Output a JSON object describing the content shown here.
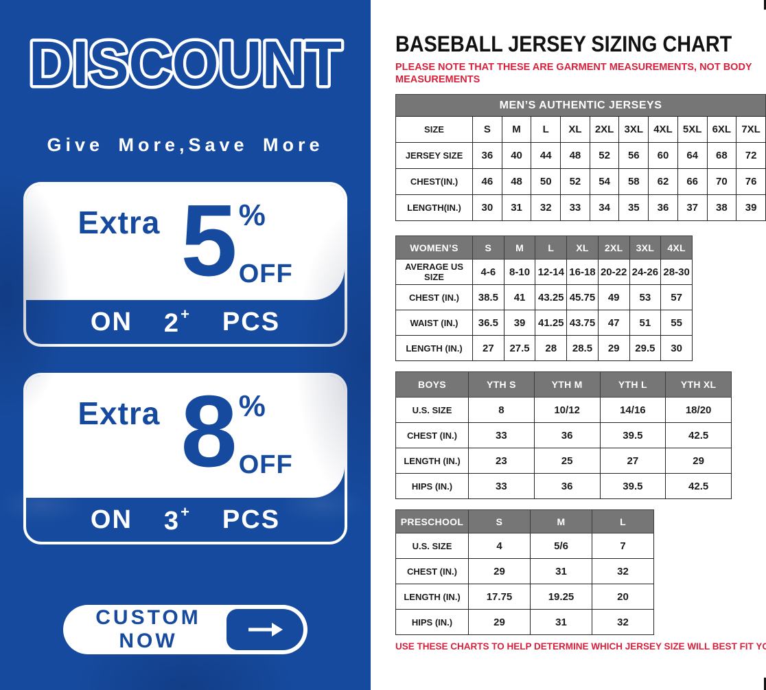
{
  "promo": {
    "title": "DISCOUNT",
    "tagline": "Give More,Save More",
    "offers": [
      {
        "prefix": "Extra",
        "percent": "5",
        "percent_sign": "%",
        "off_label": "OFF",
        "on_label": "ON",
        "qty": "2",
        "plus": "+",
        "pcs_label": "PCS"
      },
      {
        "prefix": "Extra",
        "percent": "8",
        "percent_sign": "%",
        "off_label": "OFF",
        "on_label": "ON",
        "qty": "3",
        "plus": "+",
        "pcs_label": "PCS"
      }
    ],
    "cta": {
      "label": "CUSTOM NOW",
      "icon": "arrow-right"
    }
  },
  "sizing": {
    "title": "BASEBALL JERSEY SIZING CHART",
    "note_top": "PLEASE NOTE THAT THESE ARE GARMENT MEASUREMENTS, NOT BODY MEASUREMENTS",
    "note_bottom": "USE THESE CHARTS TO HELP DETERMINE WHICH JERSEY SIZE WILL BEST FIT YOU.",
    "mens": {
      "header": "MEN’S AUTHENTIC JERSEYS",
      "rows": [
        [
          "SIZE",
          "S",
          "M",
          "L",
          "XL",
          "2XL",
          "3XL",
          "4XL",
          "5XL",
          "6XL",
          "7XL"
        ],
        [
          "JERSEY SIZE",
          "36",
          "40",
          "44",
          "48",
          "52",
          "56",
          "60",
          "64",
          "68",
          "72"
        ],
        [
          "CHEST(IN.)",
          "46",
          "48",
          "50",
          "52",
          "54",
          "58",
          "62",
          "66",
          "70",
          "76"
        ],
        [
          "LENGTH(IN.)",
          "30",
          "31",
          "32",
          "33",
          "34",
          "35",
          "36",
          "37",
          "38",
          "39"
        ]
      ]
    },
    "womens": {
      "rows": [
        [
          "WOMEN’S",
          "S",
          "M",
          "L",
          "XL",
          "2XL",
          "3XL",
          "4XL"
        ],
        [
          "AVERAGE US SIZE",
          "4-6",
          "8-10",
          "12-14",
          "16-18",
          "20-22",
          "24-26",
          "28-30"
        ],
        [
          "CHEST (IN.)",
          "38.5",
          "41",
          "43.25",
          "45.75",
          "49",
          "53",
          "57"
        ],
        [
          "WAIST (IN.)",
          "36.5",
          "39",
          "41.25",
          "43.75",
          "47",
          "51",
          "55"
        ],
        [
          "LENGTH (IN.)",
          "27",
          "27.5",
          "28",
          "28.5",
          "29",
          "29.5",
          "30"
        ]
      ]
    },
    "boys": {
      "rows": [
        [
          "BOYS",
          "YTH S",
          "YTH M",
          "YTH L",
          "YTH XL"
        ],
        [
          "U.S. SIZE",
          "8",
          "10/12",
          "14/16",
          "18/20"
        ],
        [
          "CHEST (IN.)",
          "33",
          "36",
          "39.5",
          "42.5"
        ],
        [
          "LENGTH (IN.)",
          "23",
          "25",
          "27",
          "29"
        ],
        [
          "HIPS (IN.)",
          "33",
          "36",
          "39.5",
          "42.5"
        ]
      ]
    },
    "preschool": {
      "rows": [
        [
          "PRESCHOOL",
          "S",
          "M",
          "L"
        ],
        [
          "U.S. SIZE",
          "4",
          "5/6",
          "7"
        ],
        [
          "CHEST (IN.)",
          "29",
          "31",
          "32"
        ],
        [
          "LENGTH (IN.)",
          "17.75",
          "19.25",
          "20"
        ],
        [
          "HIPS (IN.)",
          "29",
          "31",
          "32"
        ]
      ]
    }
  },
  "colors": {
    "blue": "#164a9e",
    "red": "#d6213c",
    "gray_header": "#767676"
  }
}
